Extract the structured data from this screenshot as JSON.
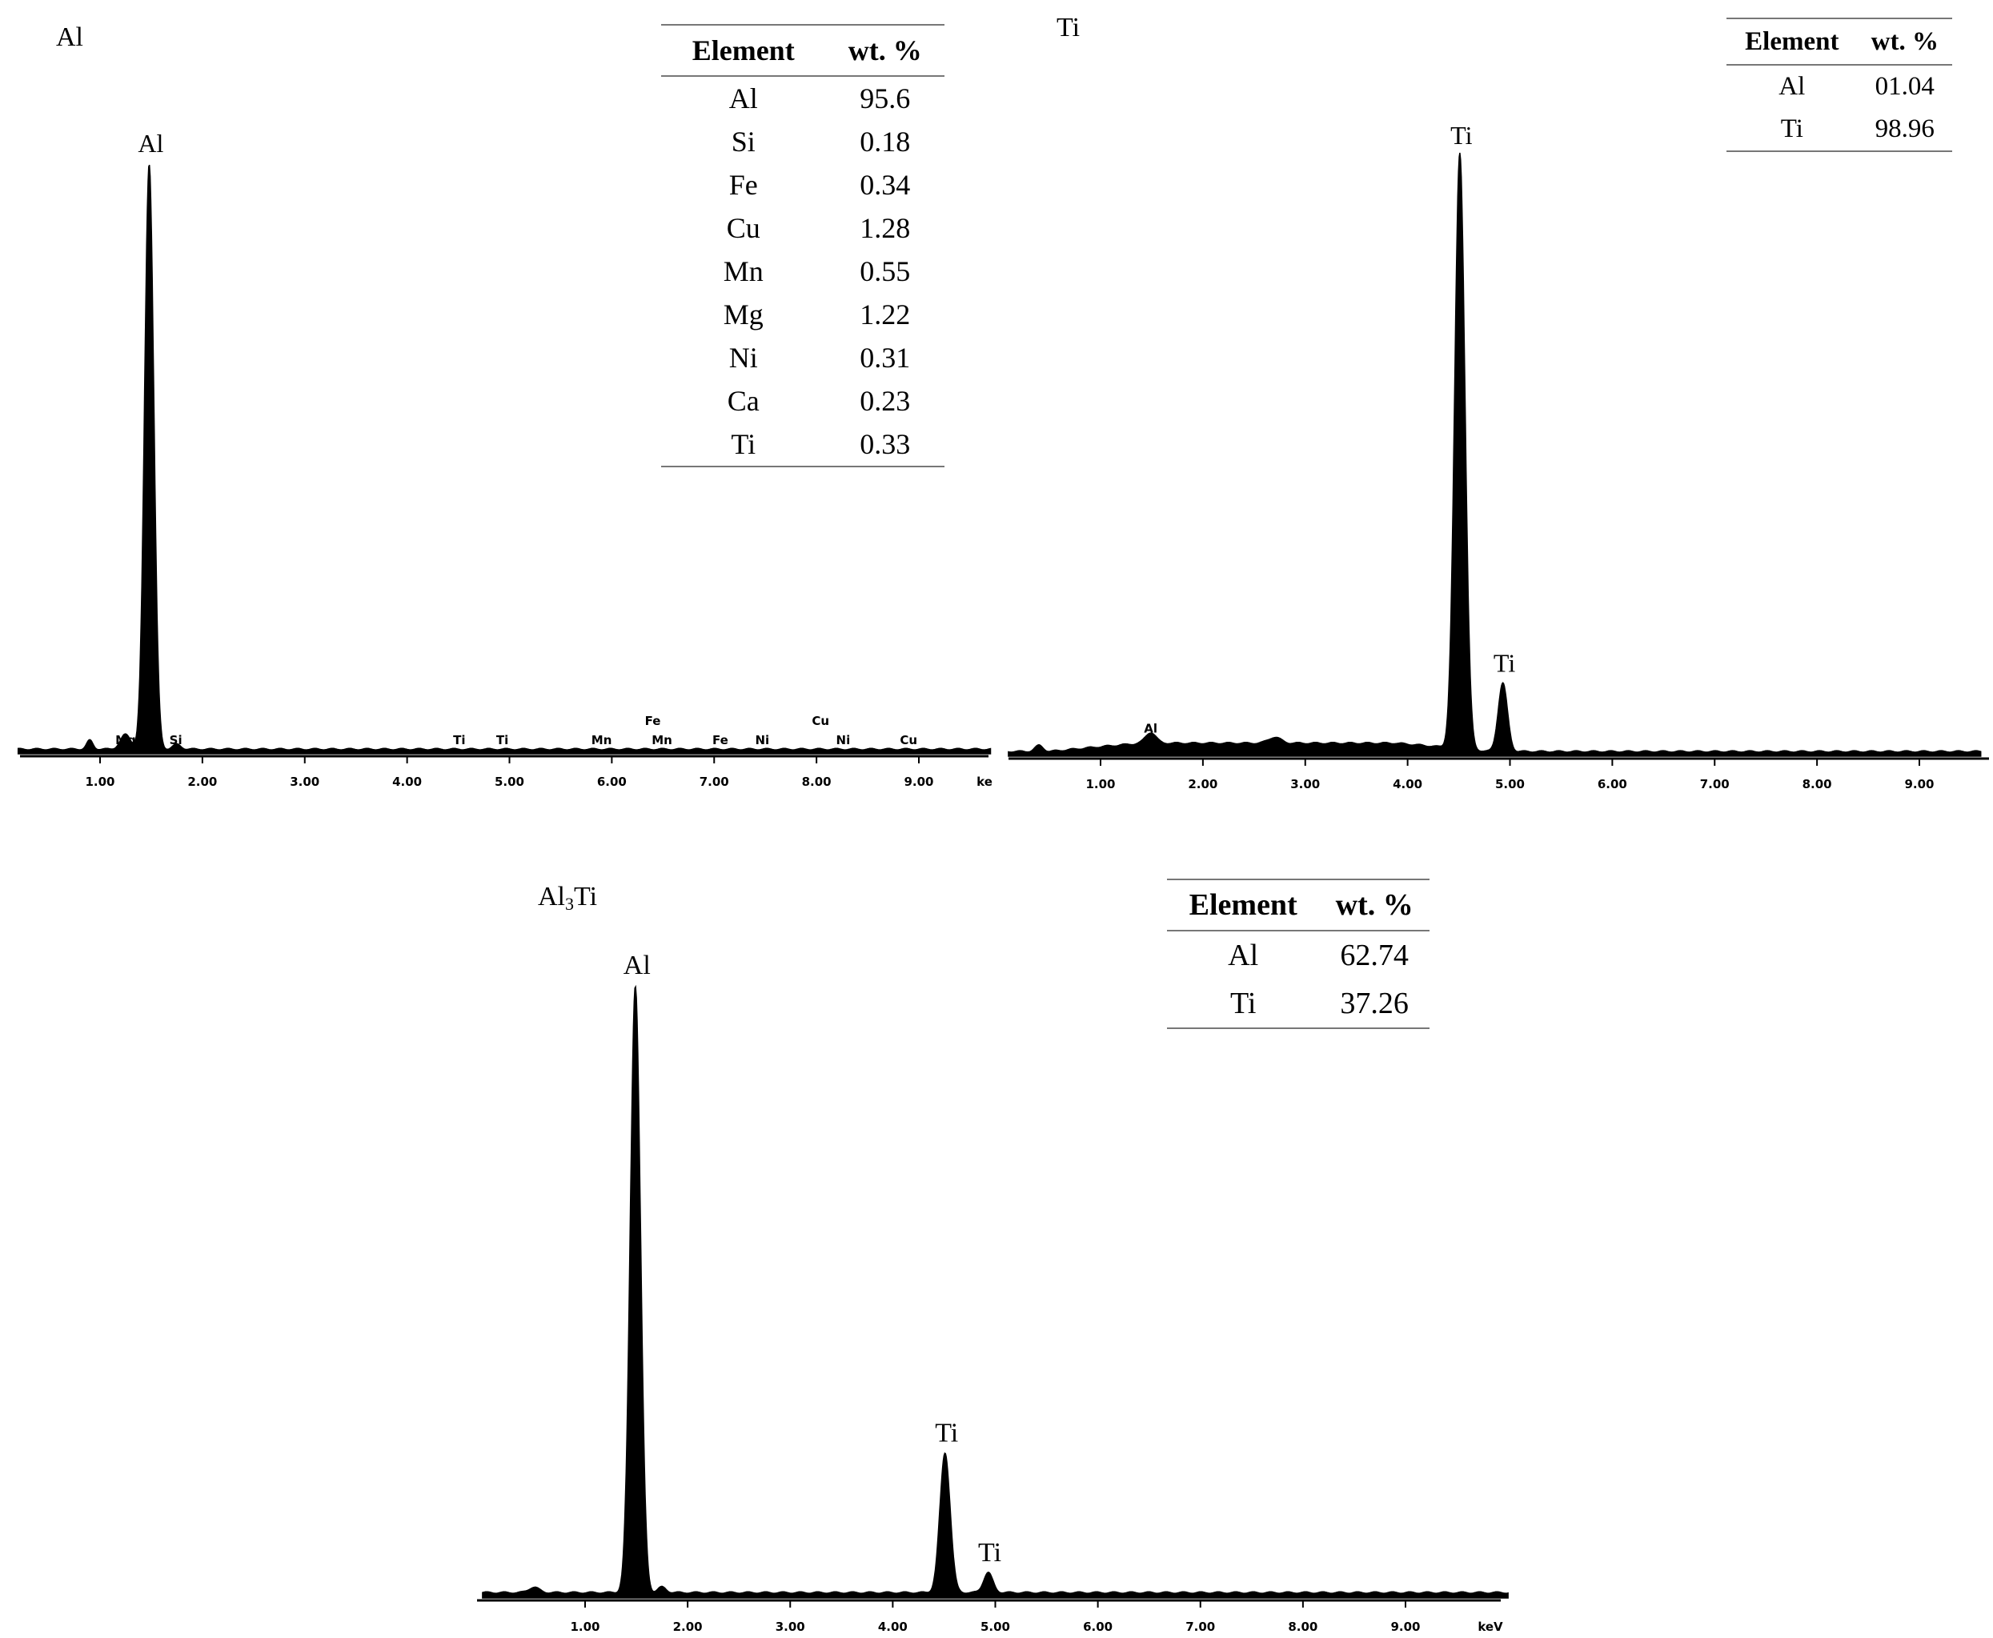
{
  "chart_data": [
    {
      "id": "al",
      "type": "line",
      "title": "Al",
      "x_unit": "",
      "xlim": [
        0.2,
        9.7
      ],
      "ticks": [
        1,
        2,
        3,
        4,
        5,
        6,
        7,
        8,
        9
      ],
      "tick_labels": [
        "1.00",
        "2.00",
        "3.00",
        "4.00",
        "5.00",
        "6.00",
        "7.00",
        "8.00",
        "9.00"
      ],
      "axis_end_label": "ke",
      "ylim": [
        0,
        100
      ],
      "baseline": 0.8,
      "baseline_rise": [],
      "peaks": [
        {
          "x": 0.9,
          "h": 1.5,
          "w": 0.03
        },
        {
          "x": 1.25,
          "h": 2.5,
          "w": 0.05
        },
        {
          "x": 1.48,
          "h": 100,
          "w": 0.045
        },
        {
          "x": 1.75,
          "h": 0.8,
          "w": 0.04
        }
      ],
      "peak_labels": [
        {
          "text": "Al",
          "x": 1.48,
          "h": 100
        }
      ],
      "element_labels": [
        {
          "text": "Mg",
          "x": 1.25,
          "row": 0
        },
        {
          "text": "Si",
          "x": 1.74,
          "row": 0
        },
        {
          "text": "Ti",
          "x": 4.51,
          "row": 0
        },
        {
          "text": "Ti",
          "x": 4.93,
          "row": 0
        },
        {
          "text": "Mn",
          "x": 5.9,
          "row": 0
        },
        {
          "text": "Fe",
          "x": 6.4,
          "row": 1
        },
        {
          "text": "Mn",
          "x": 6.49,
          "row": 0
        },
        {
          "text": "Fe",
          "x": 7.06,
          "row": 0
        },
        {
          "text": "Ni",
          "x": 7.47,
          "row": 0
        },
        {
          "text": "Cu",
          "x": 8.04,
          "row": 1
        },
        {
          "text": "Ni",
          "x": 8.26,
          "row": 0
        },
        {
          "text": "Cu",
          "x": 8.9,
          "row": 0
        }
      ],
      "table": {
        "headers": [
          "Element",
          "wt. %"
        ],
        "rows": [
          [
            "Al",
            "95.6"
          ],
          [
            "Si",
            "0.18"
          ],
          [
            "Fe",
            "0.34"
          ],
          [
            "Cu",
            "1.28"
          ],
          [
            "Mn",
            "0.55"
          ],
          [
            "Mg",
            "1.22"
          ],
          [
            "Ni",
            "0.31"
          ],
          [
            "Ca",
            "0.23"
          ],
          [
            "Ti",
            "0.33"
          ]
        ]
      }
    },
    {
      "id": "ti",
      "type": "line",
      "title": "Ti",
      "x_unit": "",
      "xlim": [
        0.1,
        9.6
      ],
      "ticks": [
        1,
        2,
        3,
        4,
        5,
        6,
        7,
        8,
        9
      ],
      "tick_labels": [
        "1.00",
        "2.00",
        "3.00",
        "4.00",
        "5.00",
        "6.00",
        "7.00",
        "8.00",
        "9.00"
      ],
      "axis_end_label": "",
      "ylim": [
        0,
        100
      ],
      "baseline": 0.8,
      "baseline_rise": [
        {
          "from": 0.5,
          "to": 4.8,
          "level": 2.2
        }
      ],
      "peaks": [
        {
          "x": 0.4,
          "h": 1.0,
          "w": 0.04
        },
        {
          "x": 1.49,
          "h": 1.8,
          "w": 0.05
        },
        {
          "x": 2.7,
          "h": 1.0,
          "w": 0.06
        },
        {
          "x": 4.51,
          "h": 100,
          "w": 0.05
        },
        {
          "x": 4.93,
          "h": 11.5,
          "w": 0.045
        }
      ],
      "peak_labels": [
        {
          "text": "Ti",
          "x": 4.51,
          "h": 100
        },
        {
          "text": "Ti",
          "x": 4.93,
          "h": 11.5
        }
      ],
      "element_labels": [
        {
          "text": "Al",
          "x": 1.49,
          "row": 0,
          "above_peak": 1.8
        }
      ],
      "table": {
        "headers": [
          "Element",
          "wt. %"
        ],
        "rows": [
          [
            "Al",
            "01.04"
          ],
          [
            "Ti",
            "98.96"
          ]
        ]
      }
    },
    {
      "id": "al3ti",
      "type": "line",
      "title": "Al",
      "title_sub": "3",
      "title_tail": "Ti",
      "x_unit": "keV",
      "xlim": [
        0.0,
        10.0
      ],
      "ticks": [
        1,
        2,
        3,
        4,
        5,
        6,
        7,
        8,
        9
      ],
      "tick_labels": [
        "1.00",
        "2.00",
        "3.00",
        "4.00",
        "5.00",
        "6.00",
        "7.00",
        "8.00",
        "9.00"
      ],
      "axis_end_label": "keV",
      "ylim": [
        0,
        100
      ],
      "baseline": 0.9,
      "baseline_rise": [],
      "peaks": [
        {
          "x": 0.5,
          "h": 0.9,
          "w": 0.05
        },
        {
          "x": 1.49,
          "h": 100,
          "w": 0.05
        },
        {
          "x": 1.75,
          "h": 0.9,
          "w": 0.04
        },
        {
          "x": 4.51,
          "h": 23,
          "w": 0.05
        },
        {
          "x": 4.93,
          "h": 3.3,
          "w": 0.045
        }
      ],
      "peak_labels": [
        {
          "text": "Al",
          "x": 1.49,
          "h": 100
        },
        {
          "text": "Ti",
          "x": 4.51,
          "h": 23
        },
        {
          "text": "Ti",
          "x": 4.93,
          "h": 3.3
        }
      ],
      "element_labels": [],
      "table": {
        "headers": [
          "Element",
          "wt. %"
        ],
        "rows": [
          [
            "Al",
            "62.74"
          ],
          [
            "Ti",
            "37.26"
          ]
        ]
      }
    }
  ]
}
